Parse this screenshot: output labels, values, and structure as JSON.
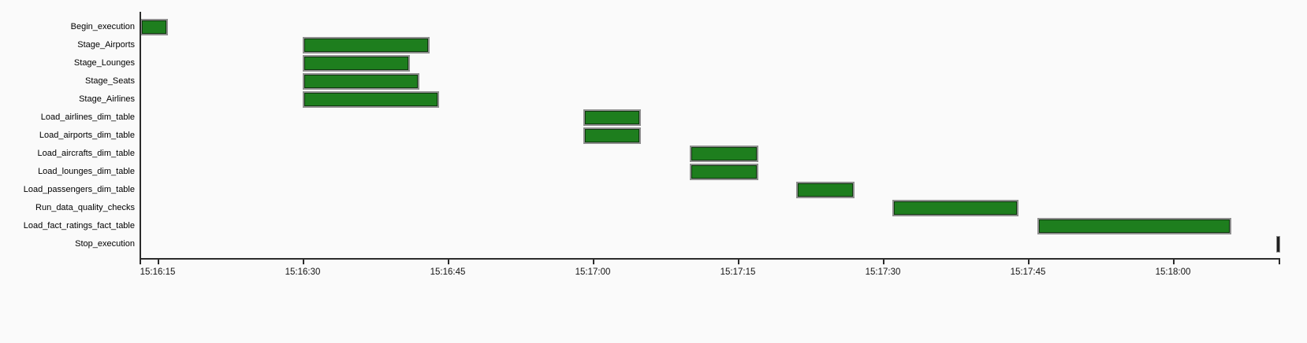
{
  "chart_data": {
    "type": "gantt",
    "title": "",
    "xlabel": "",
    "ylabel": "",
    "grid": false,
    "legend": null,
    "seconds_offset_origin": "15:16:00",
    "x_range_s": [
      13.1,
      131.3
    ],
    "x_ticks": [
      {
        "s": 15,
        "label": "15:16:15"
      },
      {
        "s": 30,
        "label": "15:16:30"
      },
      {
        "s": 45,
        "label": "15:16:45"
      },
      {
        "s": 60,
        "label": "15:17:00"
      },
      {
        "s": 75,
        "label": "15:17:15"
      },
      {
        "s": 90,
        "label": "15:17:30"
      },
      {
        "s": 105,
        "label": "15:17:45"
      },
      {
        "s": 120,
        "label": "15:18:00"
      }
    ],
    "tasks": [
      {
        "label": "Begin_execution",
        "start": "15:16:13",
        "end": "15:16:16",
        "start_s": 13.2,
        "end_s": 16.1,
        "marker": false
      },
      {
        "label": "Stage_Airports",
        "start": "15:16:30",
        "end": "15:16:43",
        "start_s": 30.0,
        "end_s": 43.1,
        "marker": false
      },
      {
        "label": "Stage_Lounges",
        "start": "15:16:30",
        "end": "15:16:41",
        "start_s": 30.0,
        "end_s": 41.1,
        "marker": false
      },
      {
        "label": "Stage_Seats",
        "start": "15:16:30",
        "end": "15:16:42",
        "start_s": 30.0,
        "end_s": 42.1,
        "marker": false
      },
      {
        "label": "Stage_Airlines",
        "start": "15:16:30",
        "end": "15:16:44",
        "start_s": 30.0,
        "end_s": 44.1,
        "marker": false
      },
      {
        "label": "Load_airlines_dim_table",
        "start": "15:16:59",
        "end": "15:17:05",
        "start_s": 59.0,
        "end_s": 65.0,
        "marker": false
      },
      {
        "label": "Load_airports_dim_table",
        "start": "15:16:59",
        "end": "15:17:05",
        "start_s": 59.0,
        "end_s": 65.0,
        "marker": false
      },
      {
        "label": "Load_aircrafts_dim_table",
        "start": "15:17:10",
        "end": "15:17:17",
        "start_s": 70.0,
        "end_s": 77.1,
        "marker": false
      },
      {
        "label": "Load_lounges_dim_table",
        "start": "15:17:10",
        "end": "15:17:17",
        "start_s": 70.0,
        "end_s": 77.1,
        "marker": false
      },
      {
        "label": "Load_passengers_dim_table",
        "start": "15:17:21",
        "end": "15:17:27",
        "start_s": 81.0,
        "end_s": 87.1,
        "marker": false
      },
      {
        "label": "Run_data_quality_checks",
        "start": "15:17:31",
        "end": "15:17:44",
        "start_s": 91.0,
        "end_s": 104.0,
        "marker": false
      },
      {
        "label": "Load_fact_ratings_fact_table",
        "start": "15:17:46",
        "end": "15:18:06",
        "start_s": 106.0,
        "end_s": 126.0,
        "marker": false
      },
      {
        "label": "Stop_execution",
        "start": "15:18:11",
        "end": "15:18:11",
        "start_s": 130.7,
        "end_s": 131.1,
        "marker": true
      }
    ],
    "colors": {
      "bar_fill": "#1e7e1e",
      "bar_border": "#8f8f8f",
      "marker_fill": "#1f1f1f",
      "axis": "#2b2b2b",
      "text": "#000000",
      "background": "#fafafa"
    }
  }
}
